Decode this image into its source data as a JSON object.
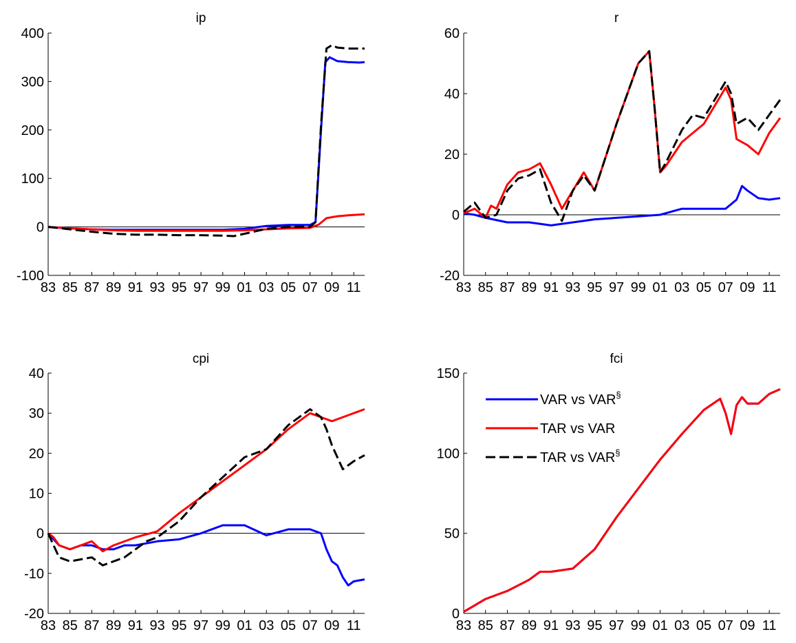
{
  "chart_data": [
    {
      "type": "line",
      "title": "ip",
      "xlabel": "",
      "ylabel": "",
      "xlim": [
        1983,
        2012
      ],
      "ylim": [
        -100,
        400
      ],
      "yticks": [
        -100,
        0,
        100,
        200,
        300,
        400
      ],
      "xtick_labels": [
        "83",
        "85",
        "87",
        "89",
        "91",
        "93",
        "95",
        "97",
        "99",
        "01",
        "03",
        "05",
        "07",
        "09",
        "11"
      ],
      "zero_line": true,
      "series": [
        {
          "color": "#0000ff",
          "dash": "",
          "x": [
            1983,
            1985,
            1987,
            1989,
            1991,
            1993,
            1995,
            1997,
            1999,
            2001,
            2003,
            2005,
            2007,
            2007.5,
            2008,
            2008.4,
            2008.8,
            2009.5,
            2010.5,
            2011.5,
            2012
          ],
          "y": [
            0,
            -3,
            -5,
            -6,
            -6,
            -6,
            -6,
            -6,
            -6,
            -4,
            2,
            4,
            4,
            10,
            200,
            340,
            350,
            342,
            340,
            339,
            340
          ]
        },
        {
          "color": "#ff0000",
          "dash": "",
          "x": [
            1983,
            1985,
            1987,
            1989,
            1991,
            1993,
            1995,
            1997,
            1999,
            2001,
            2003,
            2005,
            2007,
            2007.8,
            2008.5,
            2009.5,
            2010.5,
            2012
          ],
          "y": [
            0,
            -3,
            -5,
            -7,
            -8,
            -8,
            -8,
            -8,
            -8,
            -7,
            -5,
            -3,
            -2,
            5,
            18,
            22,
            24,
            26
          ]
        },
        {
          "color": "#000000",
          "dash": "14 6",
          "x": [
            1983,
            1985,
            1987,
            1989,
            1991,
            1993,
            1995,
            1997,
            1999,
            2000,
            2001,
            2003,
            2005,
            2007,
            2007.5,
            2008,
            2008.5,
            2009,
            2009.5,
            2010.5,
            2011.5,
            2012
          ],
          "y": [
            0,
            -5,
            -10,
            -14,
            -16,
            -16,
            -17,
            -17,
            -18,
            -19,
            -14,
            -4,
            0,
            0,
            10,
            210,
            368,
            375,
            370,
            368,
            368,
            368
          ]
        }
      ]
    },
    {
      "type": "line",
      "title": "r",
      "xlabel": "",
      "ylabel": "",
      "xlim": [
        1983,
        2012
      ],
      "ylim": [
        -20,
        60
      ],
      "yticks": [
        -20,
        0,
        20,
        40,
        60
      ],
      "xtick_labels": [
        "83",
        "85",
        "87",
        "89",
        "91",
        "93",
        "95",
        "97",
        "99",
        "01",
        "03",
        "05",
        "07",
        "09",
        "11"
      ],
      "zero_line": true,
      "series": [
        {
          "color": "#0000ff",
          "dash": "",
          "x": [
            1983,
            1984,
            1985,
            1987,
            1989,
            1991,
            1993,
            1995,
            1997,
            1999,
            2001,
            2003,
            2005,
            2007,
            2008,
            2008.5,
            2009,
            2010,
            2011,
            2012
          ],
          "y": [
            0.5,
            0,
            -1,
            -2.5,
            -2.5,
            -3.5,
            -2.5,
            -1.5,
            -1,
            -0.5,
            0,
            2,
            2,
            2,
            5,
            9.5,
            8,
            5.5,
            5,
            5.5
          ]
        },
        {
          "color": "#ff0000",
          "dash": "",
          "x": [
            1983,
            1984,
            1985,
            1985.5,
            1986,
            1987,
            1988,
            1989,
            1990,
            1991,
            1992,
            1993,
            1994,
            1995,
            1997,
            1999,
            2000,
            2000.5,
            2001,
            2001.5,
            2003,
            2005,
            2007,
            2007.5,
            2008,
            2009,
            2010,
            2011,
            2012
          ],
          "y": [
            0.5,
            2,
            -1,
            3,
            2,
            10,
            14,
            15,
            17,
            10,
            2,
            8,
            14,
            8,
            30,
            50,
            54,
            35,
            14,
            16,
            24,
            30,
            42,
            38,
            25,
            23,
            20,
            27,
            32
          ]
        },
        {
          "color": "#000000",
          "dash": "14 6",
          "x": [
            1983,
            1984,
            1985,
            1986,
            1987,
            1988,
            1989,
            1990,
            1991,
            1992,
            1993,
            1994,
            1995,
            1997,
            1999,
            2000,
            2000.5,
            2001,
            2001.5,
            2003,
            2004,
            2005,
            2007,
            2007.5,
            2008,
            2009,
            2010,
            2011,
            2012
          ],
          "y": [
            1,
            4,
            -1,
            0,
            8,
            12,
            13,
            15,
            4,
            -2,
            8,
            13,
            8,
            30,
            50,
            54,
            35,
            14,
            17,
            28,
            33,
            32,
            44,
            40,
            30,
            32,
            28,
            33,
            38
          ]
        }
      ]
    },
    {
      "type": "line",
      "title": "cpi",
      "xlabel": "",
      "ylabel": "",
      "xlim": [
        1983,
        2012
      ],
      "ylim": [
        -20,
        40
      ],
      "yticks": [
        -20,
        -10,
        0,
        10,
        20,
        30,
        40
      ],
      "xtick_labels": [
        "83",
        "85",
        "87",
        "89",
        "91",
        "93",
        "95",
        "97",
        "99",
        "01",
        "03",
        "05",
        "07",
        "09",
        "11"
      ],
      "zero_line": true,
      "series": [
        {
          "color": "#0000ff",
          "dash": "",
          "x": [
            1983,
            1984,
            1985,
            1986,
            1987,
            1988,
            1989,
            1990,
            1991,
            1993,
            1995,
            1997,
            1999,
            2001,
            2003,
            2005,
            2007,
            2008,
            2008.5,
            2009,
            2009.5,
            2010,
            2010.5,
            2011,
            2012
          ],
          "y": [
            0,
            -3,
            -4,
            -3,
            -3,
            -4,
            -4,
            -3,
            -3,
            -2,
            -1.5,
            0,
            2,
            2,
            -0.5,
            1,
            1,
            0,
            -4,
            -7,
            -8,
            -11,
            -13,
            -12,
            -11.5
          ]
        },
        {
          "color": "#ff0000",
          "dash": "",
          "x": [
            1983,
            1983.5,
            1984,
            1985,
            1986,
            1987,
            1988,
            1989,
            1991,
            1993,
            1995,
            1997,
            1999,
            2001,
            2003,
            2005,
            2007,
            2008,
            2009,
            2010,
            2011,
            2012
          ],
          "y": [
            0,
            -1,
            -3,
            -4,
            -3,
            -2,
            -4.5,
            -3,
            -1,
            0.5,
            5,
            9,
            13,
            17,
            21,
            26,
            30,
            29,
            28,
            29,
            30,
            31
          ]
        },
        {
          "color": "#000000",
          "dash": "14 6",
          "x": [
            1983,
            1983.5,
            1984,
            1985,
            1986,
            1987,
            1988,
            1989,
            1990,
            1991,
            1992,
            1993,
            1995,
            1997,
            1999,
            2001,
            2003,
            2005,
            2007,
            2008,
            2008.5,
            2009,
            2010,
            2011,
            2012
          ],
          "y": [
            0,
            -3,
            -6,
            -7,
            -6.5,
            -6,
            -8,
            -7,
            -6,
            -4,
            -2,
            -1,
            3,
            9,
            14,
            19,
            21,
            27,
            31,
            29,
            26,
            22,
            16,
            18,
            19.5
          ]
        }
      ]
    },
    {
      "type": "line",
      "title": "fci",
      "xlabel": "",
      "ylabel": "",
      "xlim": [
        1983,
        2012
      ],
      "ylim": [
        0,
        150
      ],
      "yticks": [
        0,
        50,
        100,
        150
      ],
      "xtick_labels": [
        "83",
        "85",
        "87",
        "89",
        "91",
        "93",
        "95",
        "97",
        "99",
        "01",
        "03",
        "05",
        "07",
        "09",
        "11"
      ],
      "zero_line": false,
      "series": [
        {
          "color": "#0000ff",
          "dash": "",
          "x": [
            1983,
            1984,
            1985,
            1987,
            1989,
            1990,
            1991,
            1993,
            1995,
            1997,
            1999,
            2001,
            2003,
            2005,
            2006.5,
            2007,
            2007.5,
            2008,
            2008.5,
            2009,
            2010,
            2011,
            2012
          ],
          "y": [
            1,
            5,
            9,
            14,
            21,
            26,
            26,
            28,
            40,
            60,
            78,
            96,
            112,
            127,
            134,
            125,
            112,
            130,
            135,
            131,
            131,
            137,
            140
          ]
        },
        {
          "color": "#ff0000",
          "dash": "",
          "x": [
            1983,
            1984,
            1985,
            1987,
            1989,
            1990,
            1991,
            1993,
            1995,
            1997,
            1999,
            2001,
            2003,
            2005,
            2006.5,
            2007,
            2007.5,
            2008,
            2008.5,
            2009,
            2010,
            2011,
            2012
          ],
          "y": [
            1,
            5,
            9,
            14,
            21,
            26,
            26,
            28,
            40,
            60,
            78,
            96,
            112,
            127,
            134,
            125,
            112,
            130,
            135,
            131,
            131,
            137,
            140
          ]
        }
      ],
      "legend": {
        "placement": "top-left",
        "entries": [
          {
            "label": "VAR vs VAR",
            "sup": "§",
            "color": "#0000ff",
            "dash": ""
          },
          {
            "label": "TAR vs VAR",
            "sup": "",
            "color": "#ff0000",
            "dash": ""
          },
          {
            "label": "TAR vs VAR",
            "sup": "§",
            "color": "#000000",
            "dash": "14 6"
          }
        ]
      }
    }
  ]
}
